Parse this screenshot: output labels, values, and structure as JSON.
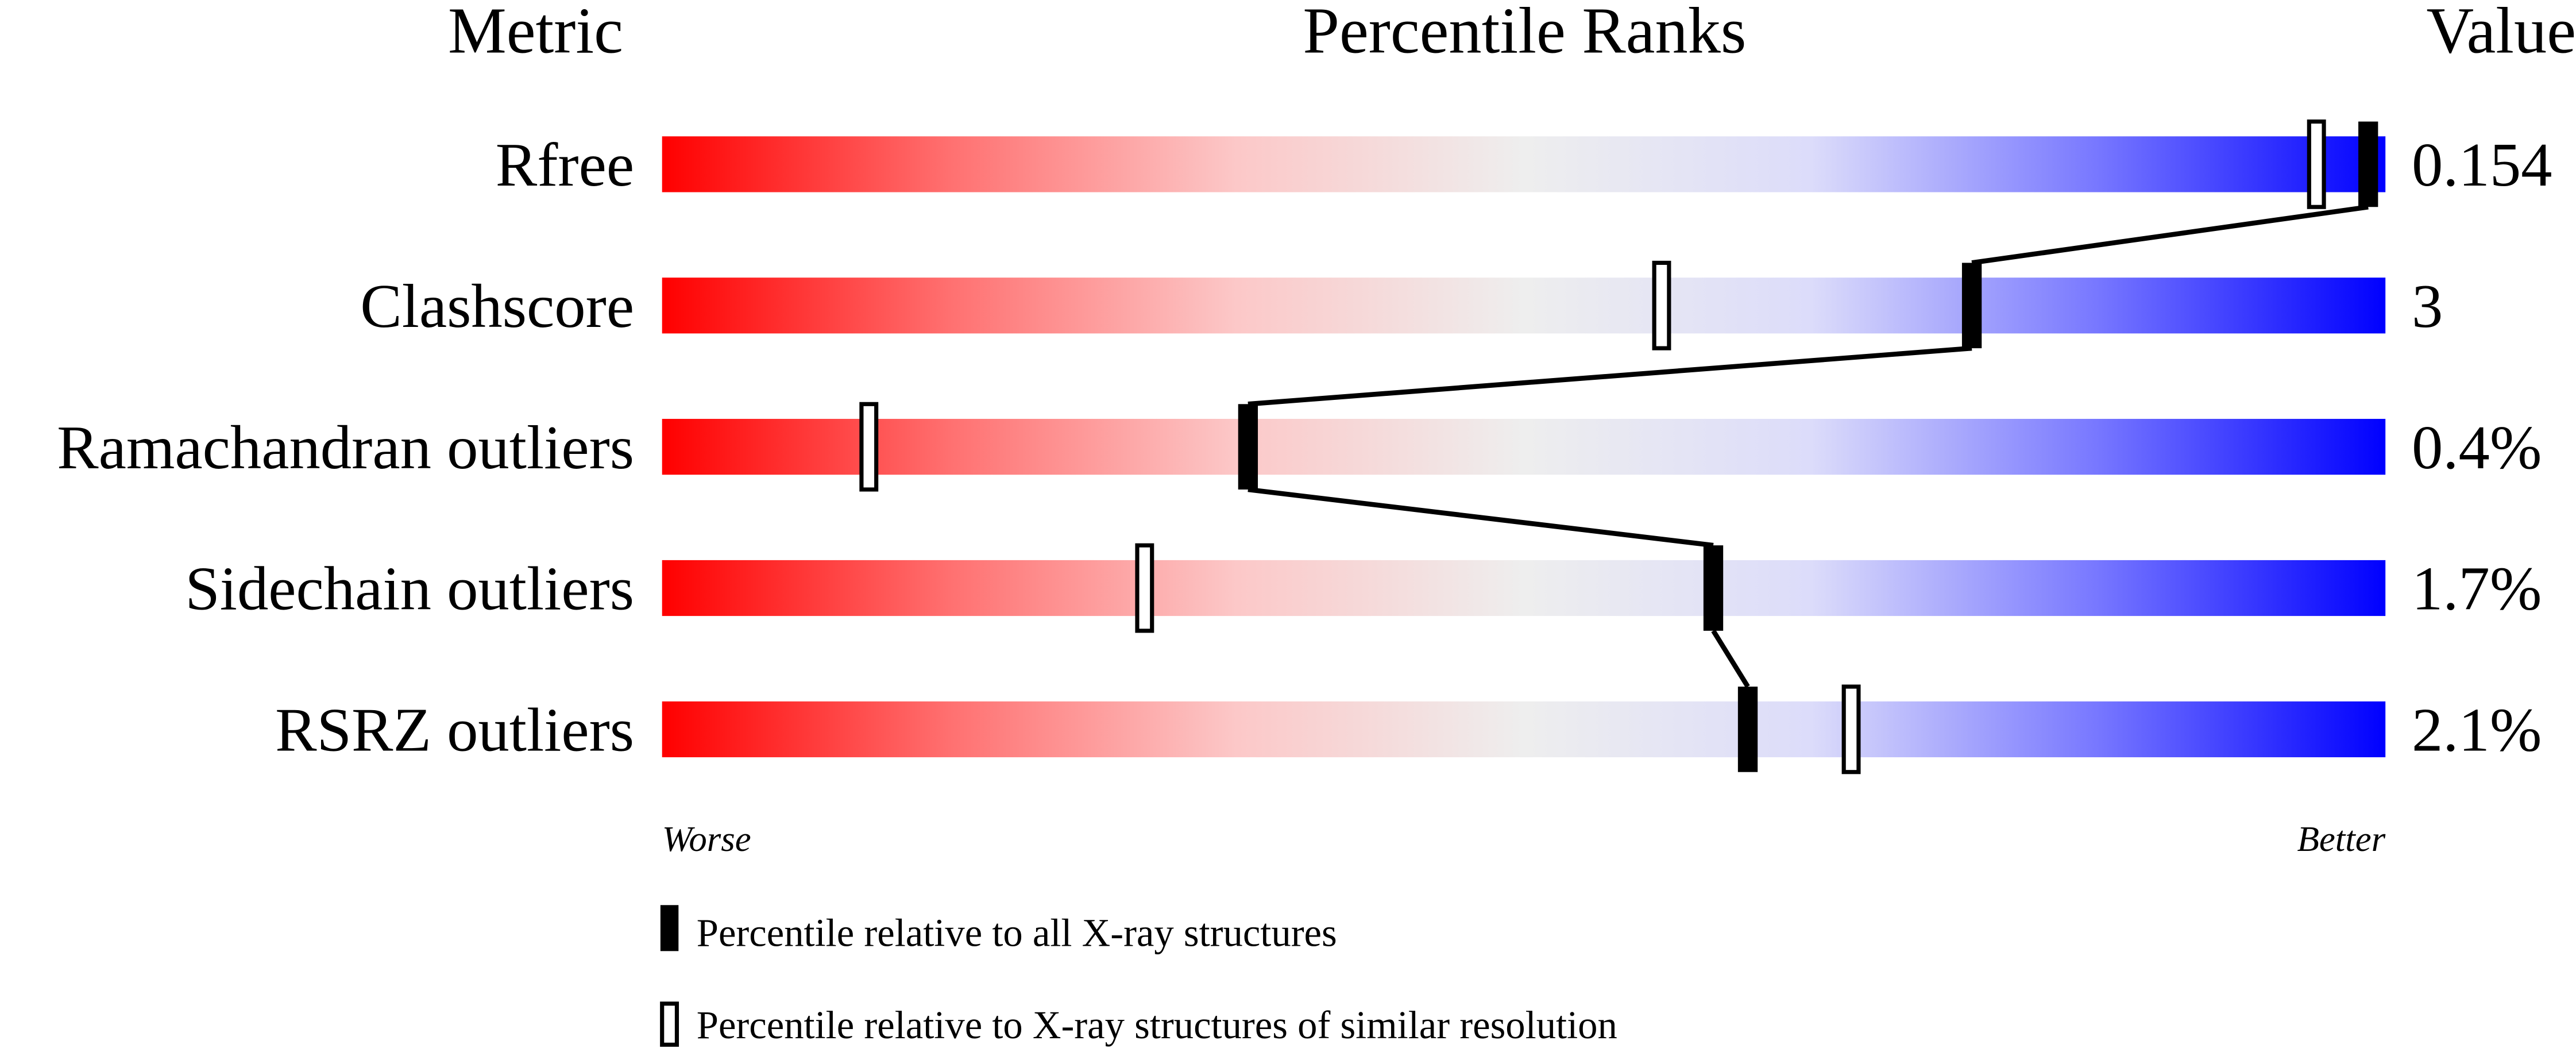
{
  "chart_data": {
    "type": "bar",
    "title": "Percentile Ranks",
    "headers": {
      "metric": "Metric",
      "percentile": "Percentile Ranks",
      "value": "Value"
    },
    "xlim": [
      0,
      100
    ],
    "axis_labels": {
      "left": "Worse",
      "right": "Better"
    },
    "gradient_colors": [
      "#ff0000",
      "#ff7070",
      "#fcc8c8",
      "#eeeeee",
      "#dcdcfa",
      "#7777ff",
      "#0000ff"
    ],
    "metrics": [
      {
        "name": "Rfree",
        "value": "0.154",
        "percentile_all": 99,
        "percentile_similar": 96
      },
      {
        "name": "Clashscore",
        "value": "3",
        "percentile_all": 76,
        "percentile_similar": 58
      },
      {
        "name": "Ramachandran outliers",
        "value": "0.4%",
        "percentile_all": 34,
        "percentile_similar": 12
      },
      {
        "name": "Sidechain outliers",
        "value": "1.7%",
        "percentile_all": 61,
        "percentile_similar": 28
      },
      {
        "name": "RSRZ outliers",
        "value": "2.1%",
        "percentile_all": 63,
        "percentile_similar": 69
      }
    ],
    "legend": [
      {
        "marker": "filled",
        "label": "Percentile relative to all X-ray structures"
      },
      {
        "marker": "open",
        "label": "Percentile relative to X-ray structures of similar resolution"
      }
    ]
  }
}
